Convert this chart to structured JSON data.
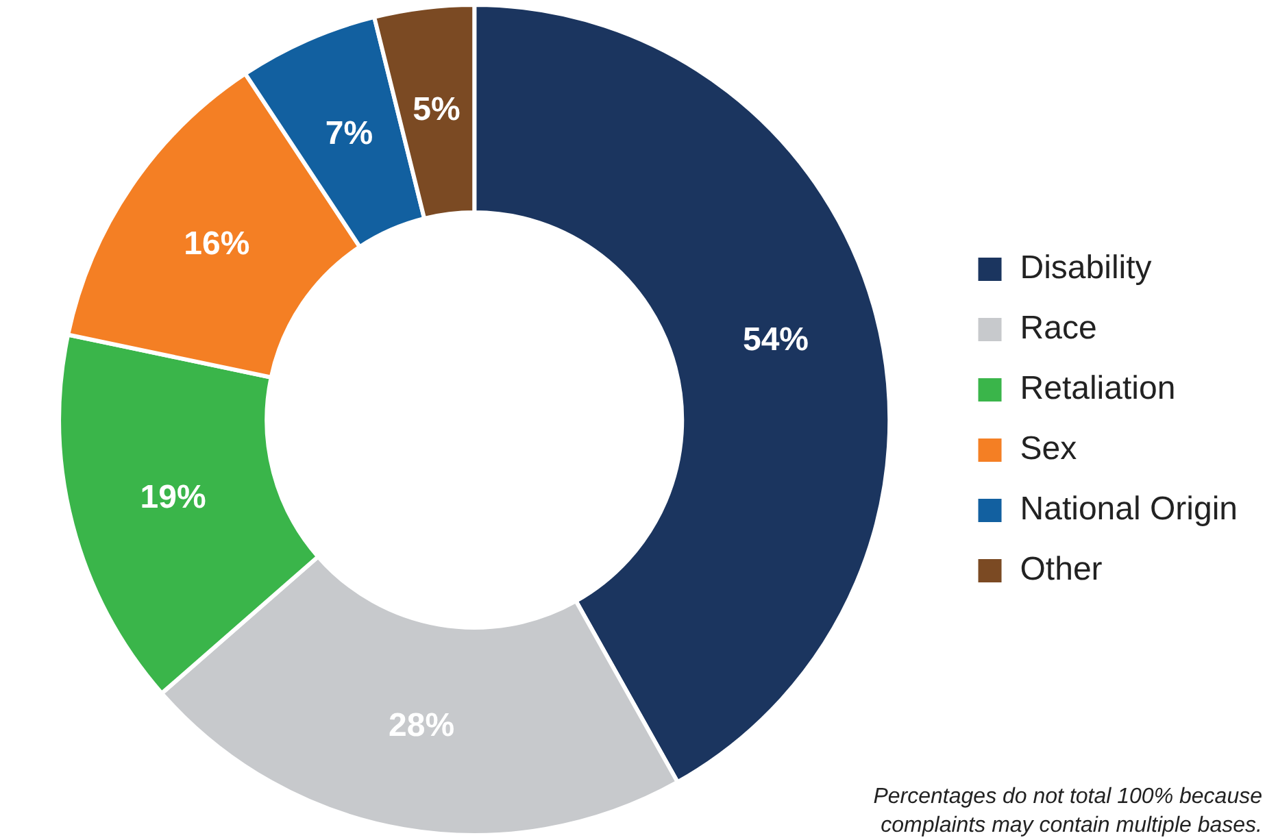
{
  "chart_data": {
    "type": "donut",
    "categories": [
      "Disability",
      "Race",
      "Retaliation",
      "Sex",
      "National Origin",
      "Other"
    ],
    "values": [
      54,
      28,
      19,
      16,
      7,
      5
    ],
    "value_labels": [
      "54%",
      "28%",
      "19%",
      "16%",
      "7%",
      "5%"
    ],
    "colors": [
      "#1b355f",
      "#c7c9cc",
      "#3ab54a",
      "#f47f24",
      "#1260a0",
      "#7b4a23"
    ],
    "legend": "right",
    "annotations": [
      "Percentages do not total 100% because complaints may contain multiple bases."
    ]
  }
}
